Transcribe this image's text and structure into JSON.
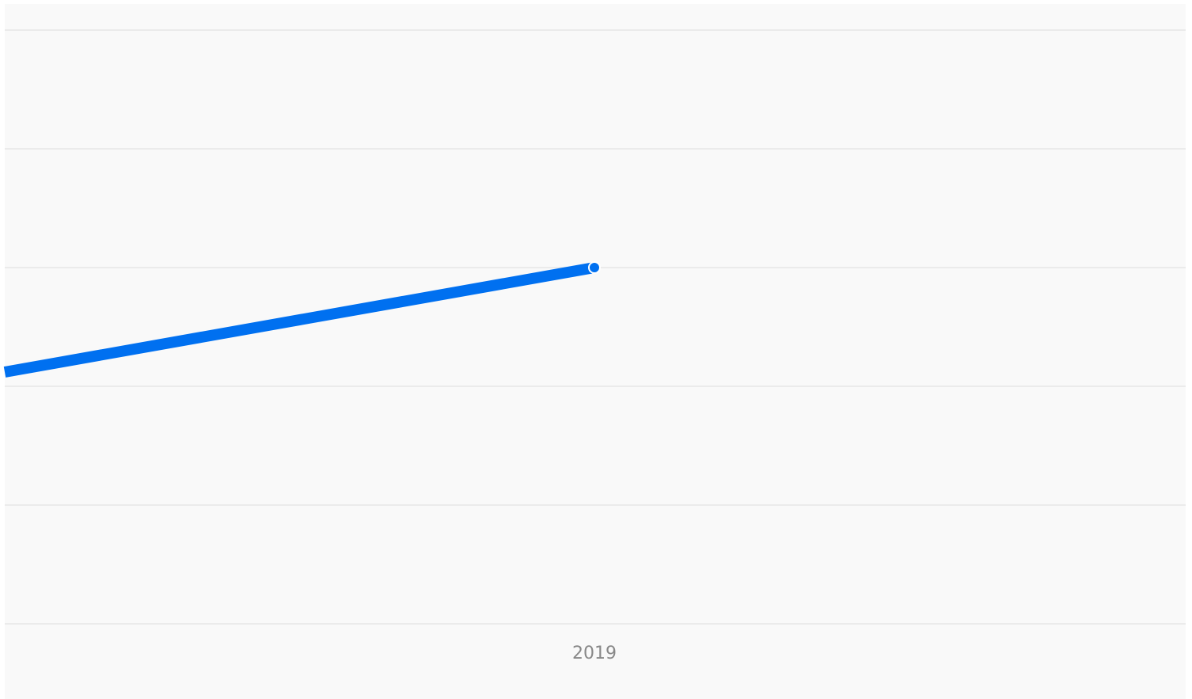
{
  "chart_data": {
    "type": "line",
    "x_tick_labels": [
      "2019"
    ],
    "grid": true,
    "series": [
      {
        "color": "#0070f0",
        "points": [
          {
            "x": "2018.6",
            "y": 2.12
          },
          {
            "x": "2019",
            "y": 3.0
          }
        ]
      }
    ],
    "ylim": [
      0,
      5
    ],
    "colors": {
      "background": "#f9f9f9",
      "gridline": "#ebebeb",
      "line": "#0070f0",
      "marker_fill": "#0070f0",
      "marker_stroke": "#ffffff",
      "tick_label": "#888888"
    }
  }
}
